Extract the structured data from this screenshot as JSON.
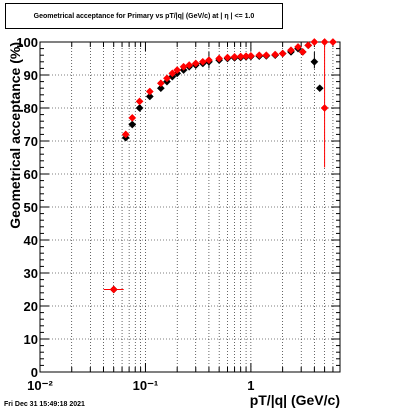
{
  "title": "Geometrical acceptance for Primary vs pT/|q| (GeV/c) at |  η | <= 1.0",
  "timestamp": "Fri Dec 31 15:49:18 2021",
  "chart_data": {
    "type": "scatter",
    "xlabel": "pT/|q| (GeV/c)",
    "ylabel": "Geometrical acceptance (%)",
    "xscale": "log",
    "xlim": [
      0.01,
      7.0
    ],
    "ylim": [
      0,
      100
    ],
    "grid": true,
    "x_tick_labels": [
      "10⁻²",
      "10⁻¹",
      "1"
    ],
    "y_tick_labels": [
      "0",
      "10",
      "20",
      "30",
      "40",
      "50",
      "60",
      "70",
      "80",
      "90",
      "100"
    ],
    "series": [
      {
        "color": "#000000",
        "marker": "diamond",
        "x": [
          0.05,
          0.065,
          0.075,
          0.088,
          0.11,
          0.14,
          0.16,
          0.18,
          0.2,
          0.23,
          0.26,
          0.3,
          0.35,
          0.4,
          0.5,
          0.6,
          0.7,
          0.8,
          0.9,
          1.0,
          1.2,
          1.4,
          1.7,
          2.0,
          2.4,
          2.8,
          3.1,
          3.5,
          4.0,
          4.5
        ],
        "y": [
          25,
          71,
          75,
          80,
          83.5,
          86,
          88,
          89.5,
          90.5,
          91.5,
          92.5,
          93,
          93.5,
          94,
          94.5,
          95,
          95.2,
          95.3,
          95.5,
          95.6,
          95.7,
          95.8,
          96,
          96.5,
          97,
          98,
          97,
          99,
          94,
          86
        ]
      },
      {
        "color": "#ff0000",
        "marker": "diamond",
        "x": [
          0.05,
          0.065,
          0.075,
          0.088,
          0.11,
          0.14,
          0.16,
          0.18,
          0.2,
          0.23,
          0.26,
          0.3,
          0.35,
          0.4,
          0.5,
          0.6,
          0.7,
          0.8,
          0.9,
          1.0,
          1.2,
          1.4,
          1.7,
          2.0,
          2.4,
          2.8,
          3.1,
          3.5,
          4.0,
          5.0,
          5.0,
          6.0
        ],
        "y": [
          25,
          72,
          77,
          82,
          85,
          87.5,
          89,
          90.5,
          91.5,
          92.5,
          93,
          93.5,
          94,
          94.5,
          95,
          95.3,
          95.5,
          95.6,
          95.7,
          95.8,
          96,
          96,
          96.2,
          96.5,
          97.5,
          98.5,
          97,
          99,
          100,
          100,
          80,
          100
        ]
      }
    ]
  }
}
